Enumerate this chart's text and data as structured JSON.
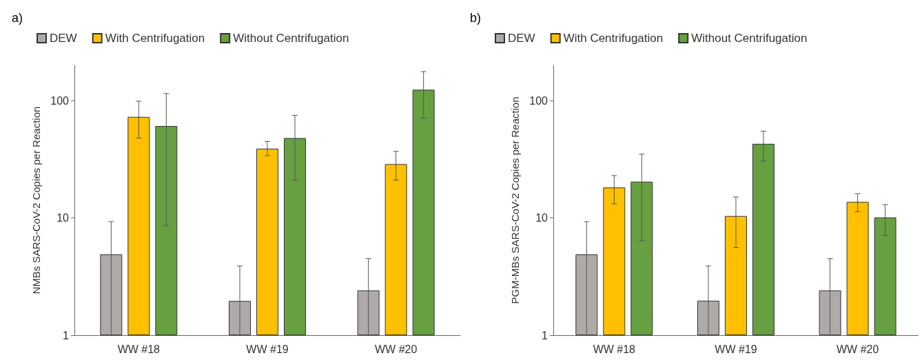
{
  "chart_data": [
    {
      "type": "bar",
      "title": "a)",
      "ylabel": "NMBs SARS-CoV-2 Copies per Reaction",
      "categories": [
        "WW #18",
        "WW #19",
        "WW #20"
      ],
      "series": [
        {
          "name": "DEW",
          "color": "#afa9a8",
          "values": [
            4.9,
            1.96,
            2.41
          ],
          "errors": [
            [
              1,
              9.3
            ],
            [
              1,
              3.9
            ],
            [
              1,
              4.5
            ]
          ]
        },
        {
          "name": "With Centrifugation",
          "color": "#ffc000",
          "values": [
            72.8,
            39,
            28.8
          ],
          "errors": [
            [
              48,
              99
            ],
            [
              34,
              45
            ],
            [
              21,
              37
            ]
          ]
        },
        {
          "name": "Without Centrifugation",
          "color": "#66a040",
          "values": [
            60.8,
            48,
            124
          ],
          "errors": [
            [
              8.6,
              115
            ],
            [
              21,
              75
            ],
            [
              71,
              177
            ]
          ]
        }
      ],
      "log": "y",
      "ylim": [
        1,
        200
      ],
      "yticks": [
        1,
        10,
        100
      ],
      "grid": false,
      "legend": "top left"
    },
    {
      "type": "bar",
      "title": "b)",
      "ylabel": "PGM-MBs SARS-CoV-2 Copies per Reaction",
      "categories": [
        "WW #18",
        "WW #19",
        "WW #20"
      ],
      "series": [
        {
          "name": "DEW",
          "color": "#afa9a8",
          "values": [
            4.9,
            1.97,
            2.41
          ],
          "errors": [
            [
              1,
              9.3
            ],
            [
              1,
              3.9
            ],
            [
              1,
              4.5
            ]
          ]
        },
        {
          "name": "With Centrifugation",
          "color": "#ffc000",
          "values": [
            18.2,
            10.4,
            13.7
          ],
          "errors": [
            [
              13.2,
              23
            ],
            [
              5.6,
              15.1
            ],
            [
              11.3,
              16.1
            ]
          ]
        },
        {
          "name": "Without Centrifugation",
          "color": "#66a040",
          "values": [
            20.4,
            42.9,
            10.1
          ],
          "errors": [
            [
              6.4,
              35
            ],
            [
              30.5,
              55
            ],
            [
              7.1,
              13
            ]
          ]
        }
      ],
      "log": "y",
      "ylim": [
        1,
        200
      ],
      "yticks": [
        1,
        10,
        100
      ],
      "grid": false,
      "legend": "top left"
    }
  ]
}
